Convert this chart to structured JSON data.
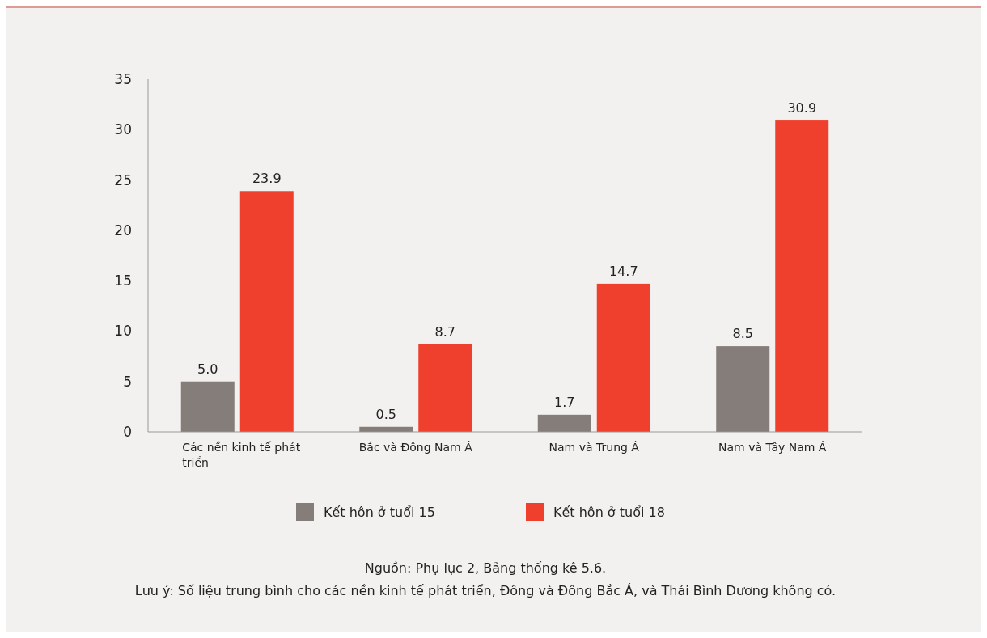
{
  "chart_data": {
    "type": "bar",
    "categories": [
      "Các nền kinh tế phát triển",
      "Bắc và Đông Nam Á",
      "Nam và Trung Á",
      "Nam và Tây Nam Á"
    ],
    "series": [
      {
        "name": "Kết hôn ở tuổi 15",
        "color": "#857d79",
        "values": [
          5.0,
          0.5,
          1.7,
          8.5
        ],
        "value_labels": [
          "5.0",
          "0.5",
          "1.7",
          "8.5"
        ]
      },
      {
        "name": "Kết hôn ở tuổi 18",
        "color": "#ee402c",
        "values": [
          23.9,
          8.7,
          14.7,
          30.9
        ],
        "value_labels": [
          "23.9",
          "8.7",
          "14.7",
          "30.9"
        ]
      }
    ],
    "ylim": [
      0,
      35
    ],
    "yticks": [
      0,
      5,
      10,
      15,
      20,
      25,
      30,
      35
    ],
    "grid": false,
    "legend": "bottom",
    "annotations": [
      "Nguồn: Phụ lục 2, Bảng thống kê 5.6.",
      "Lưu ý: Số liệu trung bình cho các nền kinh tế phát triển, Đông và Đông Bắc Á, và Thái Bình Dương không có."
    ]
  }
}
